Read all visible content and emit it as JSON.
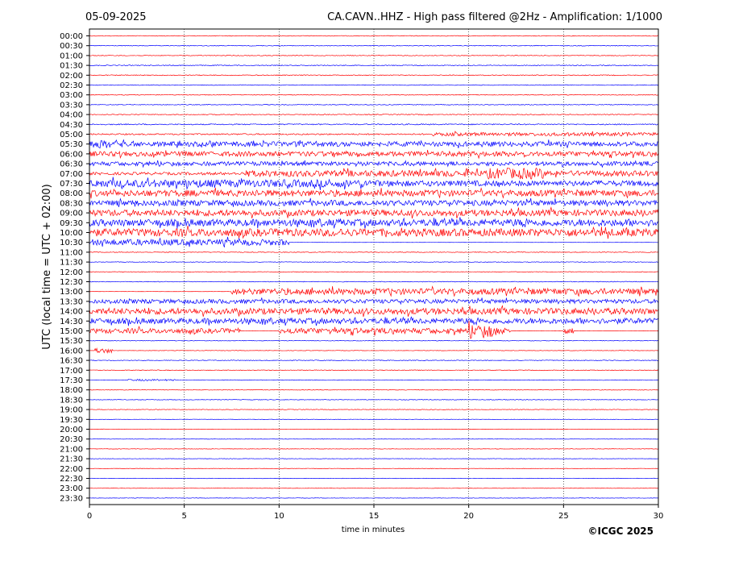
{
  "header": {
    "date": "05-09-2025",
    "title": "CA.CAVN..HHZ - High pass filtered @2Hz - Amplification: 1/1000"
  },
  "footer": {
    "copyright": "©ICGC 2025"
  },
  "chart_data": {
    "type": "line",
    "subtype": "helicorder",
    "xlabel": "time in minutes",
    "ylabel": "UTC (local time = UTC + 02:00)",
    "xlim": [
      0,
      30
    ],
    "xticks": [
      0,
      5,
      10,
      15,
      20,
      25,
      30
    ],
    "vertical_gridlines_at": [
      5,
      10,
      15,
      20,
      25
    ],
    "grid": "vertical dotted",
    "trace_colors": [
      "#ff0000",
      "#0000ff"
    ],
    "rows": [
      {
        "label": "00:00",
        "activity": [
          [
            0,
            30,
            0.05
          ]
        ]
      },
      {
        "label": "00:30",
        "activity": [
          [
            0,
            30,
            0.05
          ]
        ]
      },
      {
        "label": "01:00",
        "activity": [
          [
            0,
            30,
            0.05
          ]
        ]
      },
      {
        "label": "01:30",
        "activity": [
          [
            0,
            30,
            0.06
          ]
        ]
      },
      {
        "label": "02:00",
        "activity": [
          [
            0,
            30,
            0.06
          ]
        ]
      },
      {
        "label": "02:30",
        "activity": [
          [
            0,
            30,
            0.05
          ]
        ]
      },
      {
        "label": "03:00",
        "activity": [
          [
            0,
            30,
            0.05
          ]
        ]
      },
      {
        "label": "03:30",
        "activity": [
          [
            0,
            30,
            0.05
          ]
        ]
      },
      {
        "label": "04:00",
        "activity": [
          [
            0,
            30,
            0.06
          ]
        ]
      },
      {
        "label": "04:30",
        "activity": [
          [
            0,
            30,
            0.08
          ]
        ]
      },
      {
        "label": "05:00",
        "activity": [
          [
            0,
            18,
            0.1
          ],
          [
            18,
            30,
            0.25
          ]
        ]
      },
      {
        "label": "05:30",
        "activity": [
          [
            0,
            2,
            0.6
          ],
          [
            2,
            30,
            0.35
          ]
        ]
      },
      {
        "label": "06:00",
        "activity": [
          [
            0,
            30,
            0.35
          ]
        ]
      },
      {
        "label": "06:30",
        "activity": [
          [
            0,
            30,
            0.3
          ]
        ]
      },
      {
        "label": "07:00",
        "activity": [
          [
            0,
            8,
            0.2
          ],
          [
            8,
            21,
            0.45
          ],
          [
            21,
            24,
            0.8
          ],
          [
            24,
            30,
            0.4
          ]
        ]
      },
      {
        "label": "07:30",
        "activity": [
          [
            0,
            15,
            0.55
          ],
          [
            15,
            30,
            0.4
          ]
        ]
      },
      {
        "label": "08:00",
        "activity": [
          [
            0,
            30,
            0.45
          ]
        ]
      },
      {
        "label": "08:30",
        "activity": [
          [
            0,
            30,
            0.4
          ]
        ]
      },
      {
        "label": "09:00",
        "activity": [
          [
            0,
            30,
            0.45
          ]
        ]
      },
      {
        "label": "09:30",
        "activity": [
          [
            0,
            30,
            0.5
          ]
        ]
      },
      {
        "label": "10:00",
        "activity": [
          [
            0,
            30,
            0.55
          ]
        ]
      },
      {
        "label": "10:30",
        "activity": [
          [
            0,
            10.5,
            0.45
          ]
        ]
      },
      {
        "label": "11:00",
        "activity": [
          [
            0,
            30,
            0.05
          ]
        ]
      },
      {
        "label": "11:30",
        "activity": [
          [
            0,
            30,
            0.04
          ]
        ]
      },
      {
        "label": "12:00",
        "activity": [
          [
            0,
            30,
            0.04
          ]
        ]
      },
      {
        "label": "12:30",
        "activity": [
          [
            0,
            30,
            0.05
          ]
        ]
      },
      {
        "label": "13:00",
        "activity": [
          [
            7.5,
            30,
            0.45
          ]
        ]
      },
      {
        "label": "13:30",
        "activity": [
          [
            0,
            30,
            0.3
          ]
        ]
      },
      {
        "label": "14:00",
        "activity": [
          [
            0,
            30,
            0.45
          ]
        ]
      },
      {
        "label": "14:30",
        "activity": [
          [
            0,
            30,
            0.4
          ]
        ]
      },
      {
        "label": "15:00",
        "activity": [
          [
            0,
            8,
            0.35
          ],
          [
            10,
            20,
            0.4
          ],
          [
            20,
            21.5,
            0.9
          ],
          [
            21.5,
            22.2,
            0.5
          ],
          [
            25,
            25.5,
            0.4
          ]
        ]
      },
      {
        "label": "15:30",
        "activity": [
          [
            0,
            30,
            0.04
          ]
        ]
      },
      {
        "label": "16:00",
        "activity": [
          [
            0.3,
            1.2,
            0.35
          ],
          [
            1.2,
            30,
            0.03
          ]
        ]
      },
      {
        "label": "16:30",
        "activity": [
          [
            0,
            30,
            0.05
          ]
        ]
      },
      {
        "label": "17:00",
        "activity": [
          [
            0,
            30,
            0.05
          ]
        ]
      },
      {
        "label": "17:30",
        "activity": [
          [
            2,
            4.5,
            0.12
          ],
          [
            4.5,
            30,
            0.04
          ]
        ]
      },
      {
        "label": "18:00",
        "activity": [
          [
            0,
            30,
            0.04
          ]
        ]
      },
      {
        "label": "18:30",
        "activity": [
          [
            0,
            30,
            0.04
          ]
        ]
      },
      {
        "label": "19:00",
        "activity": [
          [
            0,
            30,
            0.04
          ]
        ]
      },
      {
        "label": "19:30",
        "activity": [
          [
            0,
            30,
            0.03
          ]
        ]
      },
      {
        "label": "20:00",
        "activity": [
          [
            0,
            30,
            0.03
          ]
        ]
      },
      {
        "label": "20:30",
        "activity": [
          [
            0,
            30,
            0.03
          ]
        ]
      },
      {
        "label": "21:00",
        "activity": [
          [
            0,
            30,
            0.03
          ]
        ]
      },
      {
        "label": "21:30",
        "activity": [
          [
            0,
            30,
            0.03
          ]
        ]
      },
      {
        "label": "22:00",
        "activity": [
          [
            0,
            30,
            0.03
          ]
        ]
      },
      {
        "label": "22:30",
        "activity": [
          [
            0,
            30,
            0.03
          ]
        ]
      },
      {
        "label": "23:00",
        "activity": [
          [
            0,
            30,
            0.03
          ]
        ]
      },
      {
        "label": "23:30",
        "activity": [
          [
            0,
            30,
            0.03
          ]
        ]
      }
    ]
  }
}
